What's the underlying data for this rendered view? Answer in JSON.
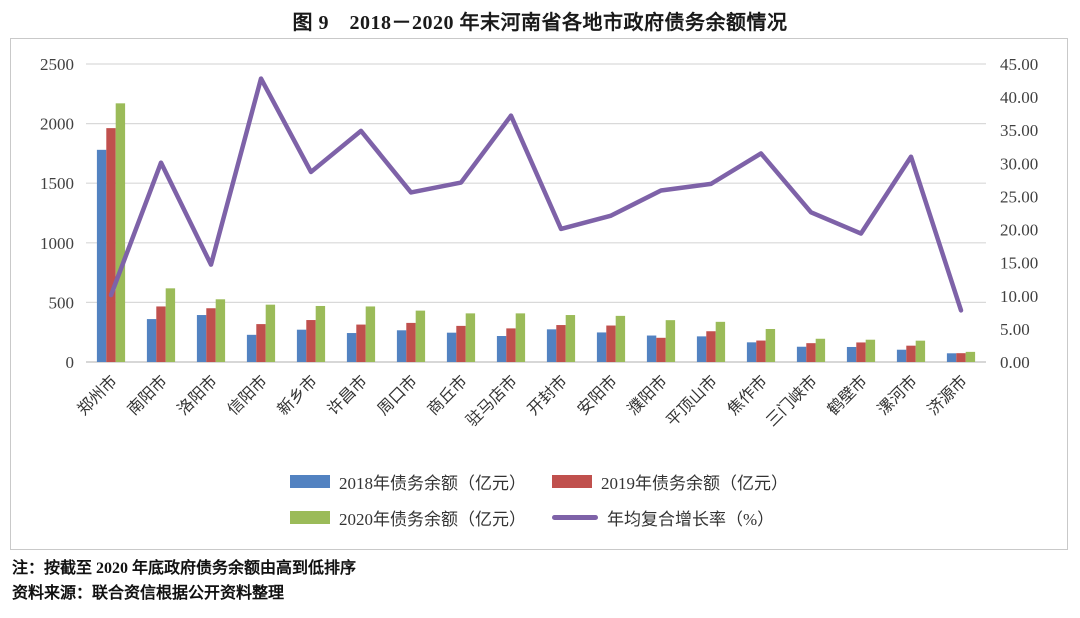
{
  "title": "图 9　2018－2020 年末河南省各地市政府债务余额情况",
  "notes": {
    "sort_note": "注：按截至 2020 年底政府债务余额由高到低排序",
    "source_note": "资料来源：联合资信根据公开资料整理"
  },
  "colors": {
    "bar_2018": "#5282C1",
    "bar_2019": "#C0504D",
    "bar_2020": "#9BBB59",
    "growth_line": "#7E62A8",
    "gridline": "#d9d9d9",
    "baseline": "#bfbfbf",
    "tick_text": "#404040"
  },
  "chart_data": {
    "type": "bar",
    "title": "图 9　2018－2020 年末河南省各地市政府债务余额情况",
    "categories": [
      "郑州市",
      "南阳市",
      "洛阳市",
      "信阳市",
      "新乡市",
      "许昌市",
      "周口市",
      "商丘市",
      "驻马店市",
      "开封市",
      "安阳市",
      "濮阳市",
      "平顶山市",
      "焦作市",
      "三门峡市",
      "鹤壁市",
      "漯河市",
      "济源市"
    ],
    "series": [
      {
        "name": "2018年债务余额（亿元）",
        "type": "bar",
        "axis": "left",
        "color": "#5282C1",
        "values": [
          1780,
          360,
          394,
          228,
          271,
          243,
          266,
          246,
          218,
          274,
          248,
          222,
          215,
          165,
          128,
          126,
          103,
          73
        ]
      },
      {
        "name": "2019年债务余额（亿元）",
        "type": "bar",
        "axis": "left",
        "color": "#C0504D",
        "values": [
          1962,
          466,
          451,
          318,
          352,
          314,
          328,
          303,
          282,
          310,
          306,
          203,
          258,
          180,
          158,
          164,
          137,
          74
        ]
      },
      {
        "name": "2020年债务余额（亿元）",
        "type": "bar",
        "axis": "left",
        "color": "#9BBB59",
        "values": [
          2170,
          618,
          526,
          481,
          470,
          466,
          431,
          408,
          408,
          394,
          387,
          351,
          337,
          277,
          195,
          187,
          179,
          85
        ]
      },
      {
        "name": "年均复合增长率（%）",
        "type": "line",
        "axis": "right",
        "color": "#7E62A8",
        "values": [
          10.1,
          30.1,
          14.7,
          42.8,
          28.7,
          34.9,
          25.6,
          27.1,
          37.2,
          20.1,
          22.1,
          25.9,
          26.9,
          31.5,
          22.6,
          19.4,
          31.0,
          7.8
        ]
      }
    ],
    "left_axis": {
      "min": 0,
      "max": 2500,
      "step": 500,
      "ticks": [
        "0",
        "500",
        "1000",
        "1500",
        "2000",
        "2500"
      ]
    },
    "right_axis": {
      "min": 0,
      "max": 45,
      "step": 5,
      "ticks": [
        "0.00",
        "5.00",
        "10.00",
        "15.00",
        "20.00",
        "25.00",
        "30.00",
        "35.00",
        "40.00",
        "45.00"
      ]
    },
    "grid": true,
    "legend_position": "bottom"
  }
}
